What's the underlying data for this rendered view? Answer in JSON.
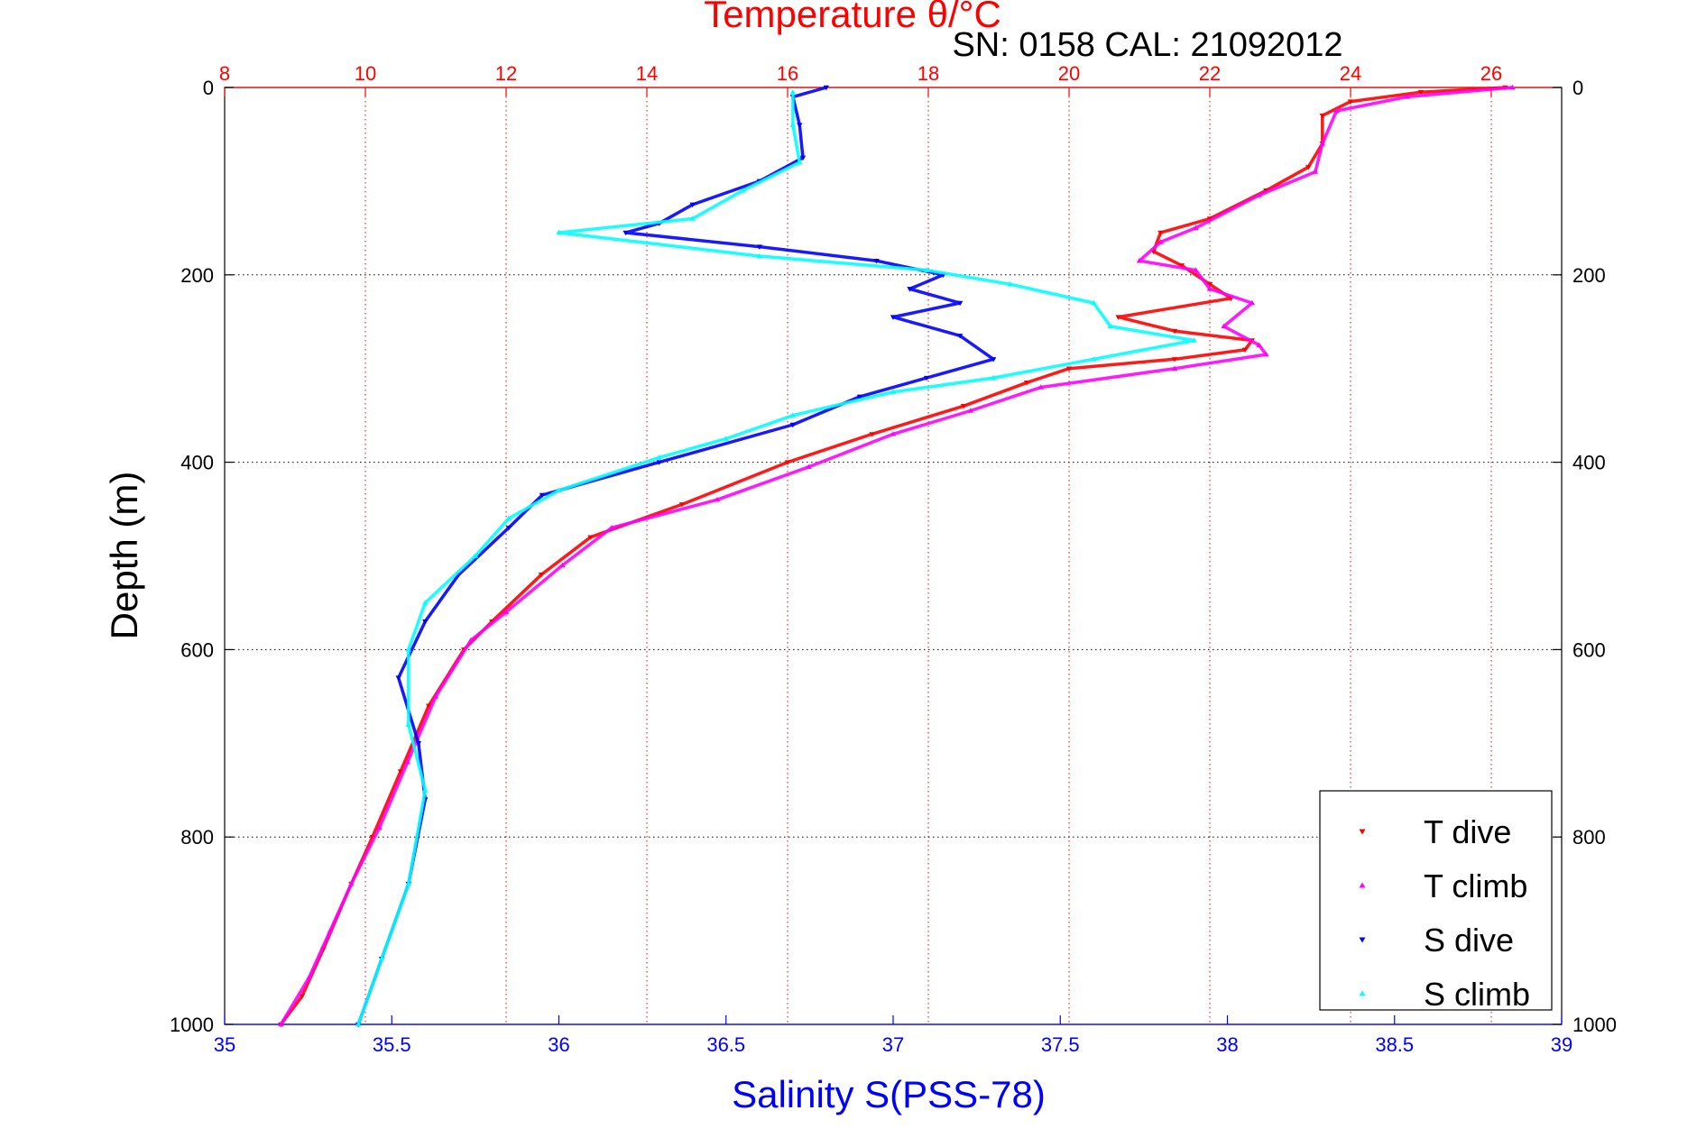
{
  "chart_data": {
    "type": "scatter",
    "title": "Temperature θ/°C",
    "annotation": "SN: 0158  CAL: 21092012",
    "xlabel": "Salinity S(PSS-78)",
    "ylabel": "Depth (m)",
    "x_temperature": {
      "lim": [
        8,
        27
      ],
      "ticks": [
        8,
        10,
        12,
        14,
        16,
        18,
        20,
        22,
        24,
        26
      ],
      "color": "#ff0000"
    },
    "x_salinity": {
      "lim": [
        35,
        39
      ],
      "ticks": [
        "35",
        "35.5",
        "36",
        "36.5",
        "37",
        "37.5",
        "38",
        "38.5",
        "39"
      ],
      "color": "#0000ff"
    },
    "y_depth": {
      "lim": [
        0,
        1000
      ],
      "reversed": true,
      "ticks": [
        0,
        200,
        400,
        600,
        800,
        1000
      ]
    },
    "grid": "dotted",
    "legend_position": "bottom-right",
    "series": [
      {
        "name": "T dive",
        "axis": "temperature",
        "color": "#ff0000",
        "marker": "triangle-down",
        "points": [
          [
            26.2,
            0
          ],
          [
            25.0,
            5
          ],
          [
            24.0,
            15
          ],
          [
            23.6,
            30
          ],
          [
            23.6,
            60
          ],
          [
            23.4,
            85
          ],
          [
            22.8,
            110
          ],
          [
            22.0,
            140
          ],
          [
            21.3,
            155
          ],
          [
            21.2,
            175
          ],
          [
            21.6,
            190
          ],
          [
            22.0,
            210
          ],
          [
            22.3,
            225
          ],
          [
            20.7,
            245
          ],
          [
            21.5,
            260
          ],
          [
            22.6,
            270
          ],
          [
            22.5,
            280
          ],
          [
            21.5,
            290
          ],
          [
            20.0,
            300
          ],
          [
            19.4,
            315
          ],
          [
            18.5,
            340
          ],
          [
            17.2,
            370
          ],
          [
            16.0,
            400
          ],
          [
            14.5,
            445
          ],
          [
            13.2,
            480
          ],
          [
            12.5,
            520
          ],
          [
            11.8,
            570
          ],
          [
            11.4,
            600
          ],
          [
            10.9,
            660
          ],
          [
            10.5,
            730
          ],
          [
            10.1,
            800
          ],
          [
            9.8,
            850
          ],
          [
            9.4,
            920
          ],
          [
            9.1,
            970
          ],
          [
            8.8,
            1000
          ]
        ]
      },
      {
        "name": "T climb",
        "axis": "temperature",
        "color": "#ff00ff",
        "marker": "triangle-up",
        "points": [
          [
            26.3,
            0
          ],
          [
            24.8,
            10
          ],
          [
            23.8,
            25
          ],
          [
            23.6,
            60
          ],
          [
            23.5,
            90
          ],
          [
            22.7,
            115
          ],
          [
            21.8,
            150
          ],
          [
            21.3,
            165
          ],
          [
            21.0,
            185
          ],
          [
            21.8,
            195
          ],
          [
            22.0,
            215
          ],
          [
            22.6,
            230
          ],
          [
            22.2,
            255
          ],
          [
            22.7,
            275
          ],
          [
            22.8,
            285
          ],
          [
            21.5,
            300
          ],
          [
            19.6,
            320
          ],
          [
            18.6,
            345
          ],
          [
            17.5,
            370
          ],
          [
            16.3,
            405
          ],
          [
            15.0,
            440
          ],
          [
            13.5,
            470
          ],
          [
            12.8,
            510
          ],
          [
            12.0,
            560
          ],
          [
            11.5,
            590
          ],
          [
            11.0,
            650
          ],
          [
            10.6,
            720
          ],
          [
            10.2,
            790
          ],
          [
            9.8,
            850
          ],
          [
            9.5,
            900
          ],
          [
            9.2,
            950
          ],
          [
            8.8,
            1000
          ]
        ]
      },
      {
        "name": "S dive",
        "axis": "salinity",
        "color": "#0000ff",
        "marker": "triangle-down",
        "points": [
          [
            36.8,
            0
          ],
          [
            36.7,
            10
          ],
          [
            36.72,
            40
          ],
          [
            36.73,
            75
          ],
          [
            36.6,
            100
          ],
          [
            36.4,
            125
          ],
          [
            36.3,
            145
          ],
          [
            36.2,
            155
          ],
          [
            36.6,
            170
          ],
          [
            36.95,
            185
          ],
          [
            37.15,
            200
          ],
          [
            37.05,
            215
          ],
          [
            37.2,
            230
          ],
          [
            37.0,
            245
          ],
          [
            37.2,
            265
          ],
          [
            37.3,
            290
          ],
          [
            37.1,
            310
          ],
          [
            36.9,
            330
          ],
          [
            36.7,
            360
          ],
          [
            36.3,
            400
          ],
          [
            35.95,
            435
          ],
          [
            35.85,
            470
          ],
          [
            35.7,
            520
          ],
          [
            35.6,
            570
          ],
          [
            35.52,
            630
          ],
          [
            35.58,
            700
          ],
          [
            35.6,
            760
          ],
          [
            35.55,
            850
          ],
          [
            35.47,
            930
          ],
          [
            35.4,
            1000
          ]
        ]
      },
      {
        "name": "S climb",
        "axis": "salinity",
        "color": "#00ffff",
        "marker": "triangle-up",
        "points": [
          [
            36.7,
            5
          ],
          [
            36.7,
            40
          ],
          [
            36.72,
            80
          ],
          [
            36.55,
            110
          ],
          [
            36.4,
            140
          ],
          [
            36.0,
            155
          ],
          [
            36.6,
            180
          ],
          [
            37.1,
            195
          ],
          [
            37.35,
            210
          ],
          [
            37.6,
            230
          ],
          [
            37.65,
            255
          ],
          [
            37.9,
            270
          ],
          [
            37.6,
            290
          ],
          [
            37.3,
            310
          ],
          [
            37.0,
            325
          ],
          [
            36.7,
            350
          ],
          [
            36.5,
            375
          ],
          [
            36.3,
            395
          ],
          [
            36.0,
            430
          ],
          [
            35.85,
            460
          ],
          [
            35.75,
            500
          ],
          [
            35.6,
            550
          ],
          [
            35.55,
            600
          ],
          [
            35.55,
            680
          ],
          [
            35.6,
            750
          ],
          [
            35.55,
            850
          ],
          [
            35.47,
            930
          ],
          [
            35.4,
            1000
          ]
        ]
      }
    ]
  }
}
